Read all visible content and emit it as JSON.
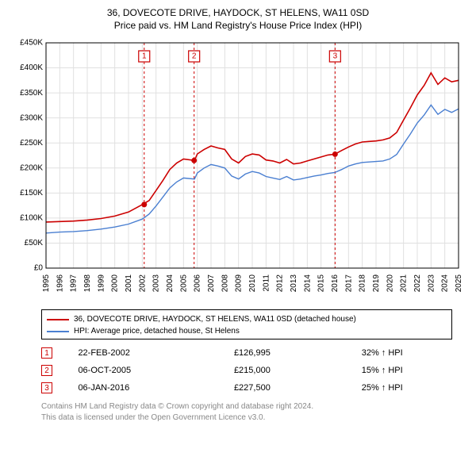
{
  "title_line1": "36, DOVECOTE DRIVE, HAYDOCK, ST HELENS, WA11 0SD",
  "title_line2": "Price paid vs. HM Land Registry's House Price Index (HPI)",
  "chart": {
    "type": "line",
    "background_color": "#ffffff",
    "grid_color": "#e0e0e0",
    "axis_color": "#000000",
    "x_min_year": 1995,
    "x_max_year": 2025,
    "y_min": 0,
    "y_max": 450000,
    "y_tick_step": 50000,
    "y_tick_prefix": "£",
    "y_tick_suffix": "K",
    "y_ticks": [
      "£0",
      "£50K",
      "£100K",
      "£150K",
      "£200K",
      "£250K",
      "£300K",
      "£350K",
      "£400K",
      "£450K"
    ],
    "x_ticks": [
      "1995",
      "1996",
      "1997",
      "1998",
      "1999",
      "2000",
      "2001",
      "2002",
      "2003",
      "2004",
      "2005",
      "2006",
      "2007",
      "2008",
      "2009",
      "2010",
      "2011",
      "2012",
      "2013",
      "2014",
      "2015",
      "2016",
      "2017",
      "2018",
      "2019",
      "2020",
      "2021",
      "2022",
      "2023",
      "2024",
      "2025"
    ],
    "series": [
      {
        "name": "price_paid",
        "label": "36, DOVECOTE DRIVE, HAYDOCK, ST HELENS, WA11 0SD (detached house)",
        "color": "#cc0000",
        "line_width": 1.6,
        "points": [
          [
            1995,
            92000
          ],
          [
            1996,
            93000
          ],
          [
            1997,
            94000
          ],
          [
            1998,
            96000
          ],
          [
            1999,
            99000
          ],
          [
            2000,
            104000
          ],
          [
            2001,
            112000
          ],
          [
            2002,
            126995
          ],
          [
            2002.5,
            135000
          ],
          [
            2003,
            155000
          ],
          [
            2003.5,
            175000
          ],
          [
            2004,
            197000
          ],
          [
            2004.5,
            210000
          ],
          [
            2005,
            218000
          ],
          [
            2005.8,
            215000
          ],
          [
            2006,
            228000
          ],
          [
            2006.5,
            237000
          ],
          [
            2007,
            244000
          ],
          [
            2007.5,
            240000
          ],
          [
            2008,
            237000
          ],
          [
            2008.5,
            218000
          ],
          [
            2009,
            210000
          ],
          [
            2009.5,
            223000
          ],
          [
            2010,
            228000
          ],
          [
            2010.5,
            226000
          ],
          [
            2011,
            216000
          ],
          [
            2011.5,
            214000
          ],
          [
            2012,
            210000
          ],
          [
            2012.5,
            217000
          ],
          [
            2013,
            208000
          ],
          [
            2013.5,
            210000
          ],
          [
            2014,
            214000
          ],
          [
            2014.5,
            218000
          ],
          [
            2015,
            222000
          ],
          [
            2015.5,
            226000
          ],
          [
            2016,
            227500
          ],
          [
            2016.5,
            235000
          ],
          [
            2017,
            242000
          ],
          [
            2017.5,
            248000
          ],
          [
            2018,
            252000
          ],
          [
            2018.5,
            253000
          ],
          [
            2019,
            254000
          ],
          [
            2019.5,
            256000
          ],
          [
            2020,
            260000
          ],
          [
            2020.5,
            271000
          ],
          [
            2021,
            296000
          ],
          [
            2021.5,
            320000
          ],
          [
            2022,
            346000
          ],
          [
            2022.5,
            365000
          ],
          [
            2023,
            390000
          ],
          [
            2023.5,
            367000
          ],
          [
            2024,
            380000
          ],
          [
            2024.5,
            372000
          ],
          [
            2025,
            375000
          ]
        ]
      },
      {
        "name": "hpi",
        "label": "HPI: Average price, detached house, St Helens",
        "color": "#4a7fd1",
        "line_width": 1.4,
        "points": [
          [
            1995,
            70000
          ],
          [
            1996,
            72000
          ],
          [
            1997,
            73000
          ],
          [
            1998,
            75000
          ],
          [
            1999,
            78000
          ],
          [
            2000,
            82000
          ],
          [
            2001,
            88000
          ],
          [
            2002,
            98000
          ],
          [
            2002.5,
            108000
          ],
          [
            2003,
            124000
          ],
          [
            2003.5,
            142000
          ],
          [
            2004,
            160000
          ],
          [
            2004.5,
            172000
          ],
          [
            2005,
            180000
          ],
          [
            2005.8,
            178000
          ],
          [
            2006,
            190000
          ],
          [
            2006.5,
            200000
          ],
          [
            2007,
            207000
          ],
          [
            2007.5,
            204000
          ],
          [
            2008,
            200000
          ],
          [
            2008.5,
            184000
          ],
          [
            2009,
            178000
          ],
          [
            2009.5,
            188000
          ],
          [
            2010,
            193000
          ],
          [
            2010.5,
            190000
          ],
          [
            2011,
            183000
          ],
          [
            2011.5,
            180000
          ],
          [
            2012,
            177000
          ],
          [
            2012.5,
            183000
          ],
          [
            2013,
            176000
          ],
          [
            2013.5,
            178000
          ],
          [
            2014,
            181000
          ],
          [
            2014.5,
            184000
          ],
          [
            2015,
            186000
          ],
          [
            2015.5,
            189000
          ],
          [
            2016,
            191000
          ],
          [
            2016.5,
            197000
          ],
          [
            2017,
            204000
          ],
          [
            2017.5,
            208000
          ],
          [
            2018,
            211000
          ],
          [
            2018.5,
            212000
          ],
          [
            2019,
            213000
          ],
          [
            2019.5,
            214000
          ],
          [
            2020,
            218000
          ],
          [
            2020.5,
            227000
          ],
          [
            2021,
            248000
          ],
          [
            2021.5,
            268000
          ],
          [
            2022,
            290000
          ],
          [
            2022.5,
            306000
          ],
          [
            2023,
            326000
          ],
          [
            2023.5,
            307000
          ],
          [
            2024,
            317000
          ],
          [
            2024.5,
            311000
          ],
          [
            2025,
            318000
          ]
        ]
      }
    ],
    "sale_markers": [
      {
        "num": "1",
        "year": 2002.14,
        "price": 126995,
        "line_color": "#cc0000"
      },
      {
        "num": "2",
        "year": 2005.77,
        "price": 215000,
        "line_color": "#cc0000"
      },
      {
        "num": "3",
        "year": 2016.02,
        "price": 227500,
        "line_color": "#cc0000"
      }
    ],
    "marker_dot_color": "#cc0000",
    "marker_dash": "3,3"
  },
  "legend": {
    "border_color": "#000000",
    "items": [
      {
        "color": "#cc0000",
        "label": "36, DOVECOTE DRIVE, HAYDOCK, ST HELENS, WA11 0SD (detached house)"
      },
      {
        "color": "#4a7fd1",
        "label": "HPI: Average price, detached house, St Helens"
      }
    ]
  },
  "sales_table": {
    "rows": [
      {
        "num": "1",
        "date": "22-FEB-2002",
        "price": "£126,995",
        "diff": "32% ↑ HPI"
      },
      {
        "num": "2",
        "date": "06-OCT-2005",
        "price": "£215,000",
        "diff": "15% ↑ HPI"
      },
      {
        "num": "3",
        "date": "06-JAN-2016",
        "price": "£227,500",
        "diff": "25% ↑ HPI"
      }
    ]
  },
  "footer_line1": "Contains HM Land Registry data © Crown copyright and database right 2024.",
  "footer_line2": "This data is licensed under the Open Government Licence v3.0."
}
